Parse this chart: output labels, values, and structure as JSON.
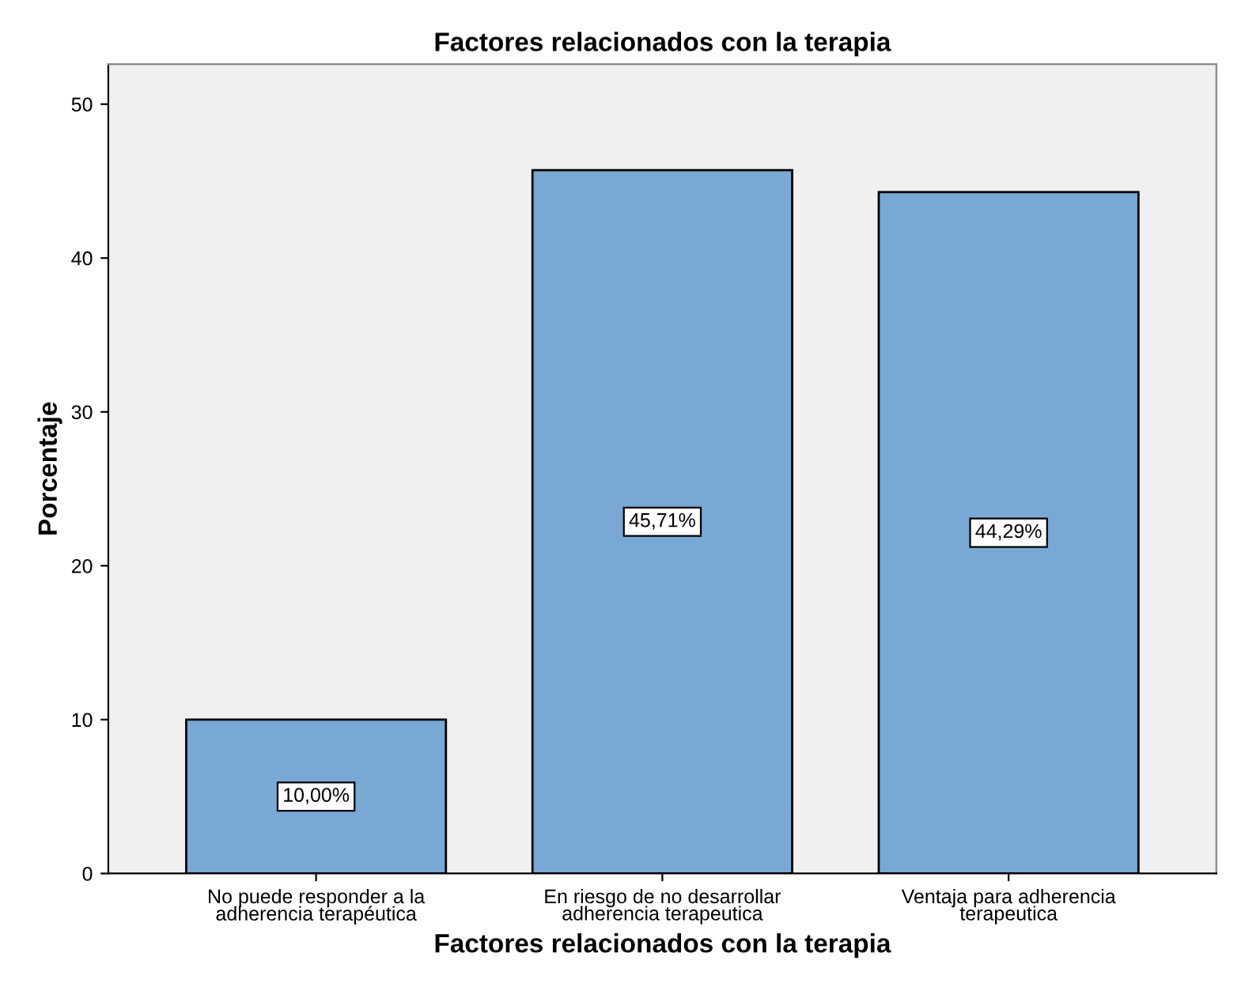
{
  "chart_data": {
    "type": "bar",
    "title": "Factores relacionados con la terapia",
    "xlabel": "Factores relacionados con la terapia",
    "ylabel": "Porcentaje",
    "categories": [
      "No puede responder a la\nadherencia terapéutica",
      "En riesgo de no desarrollar\nadherencia terapeutica",
      "Ventaja para adherencia\nterapeutica"
    ],
    "values": [
      10.0,
      45.71,
      44.29
    ],
    "value_labels": [
      "10,00%",
      "45,71%",
      "44,29%"
    ],
    "color": "#79a8d5",
    "ylim": [
      0,
      52.6
    ],
    "yticks": [
      0,
      10,
      20,
      30,
      40,
      50
    ],
    "grid": false
  }
}
